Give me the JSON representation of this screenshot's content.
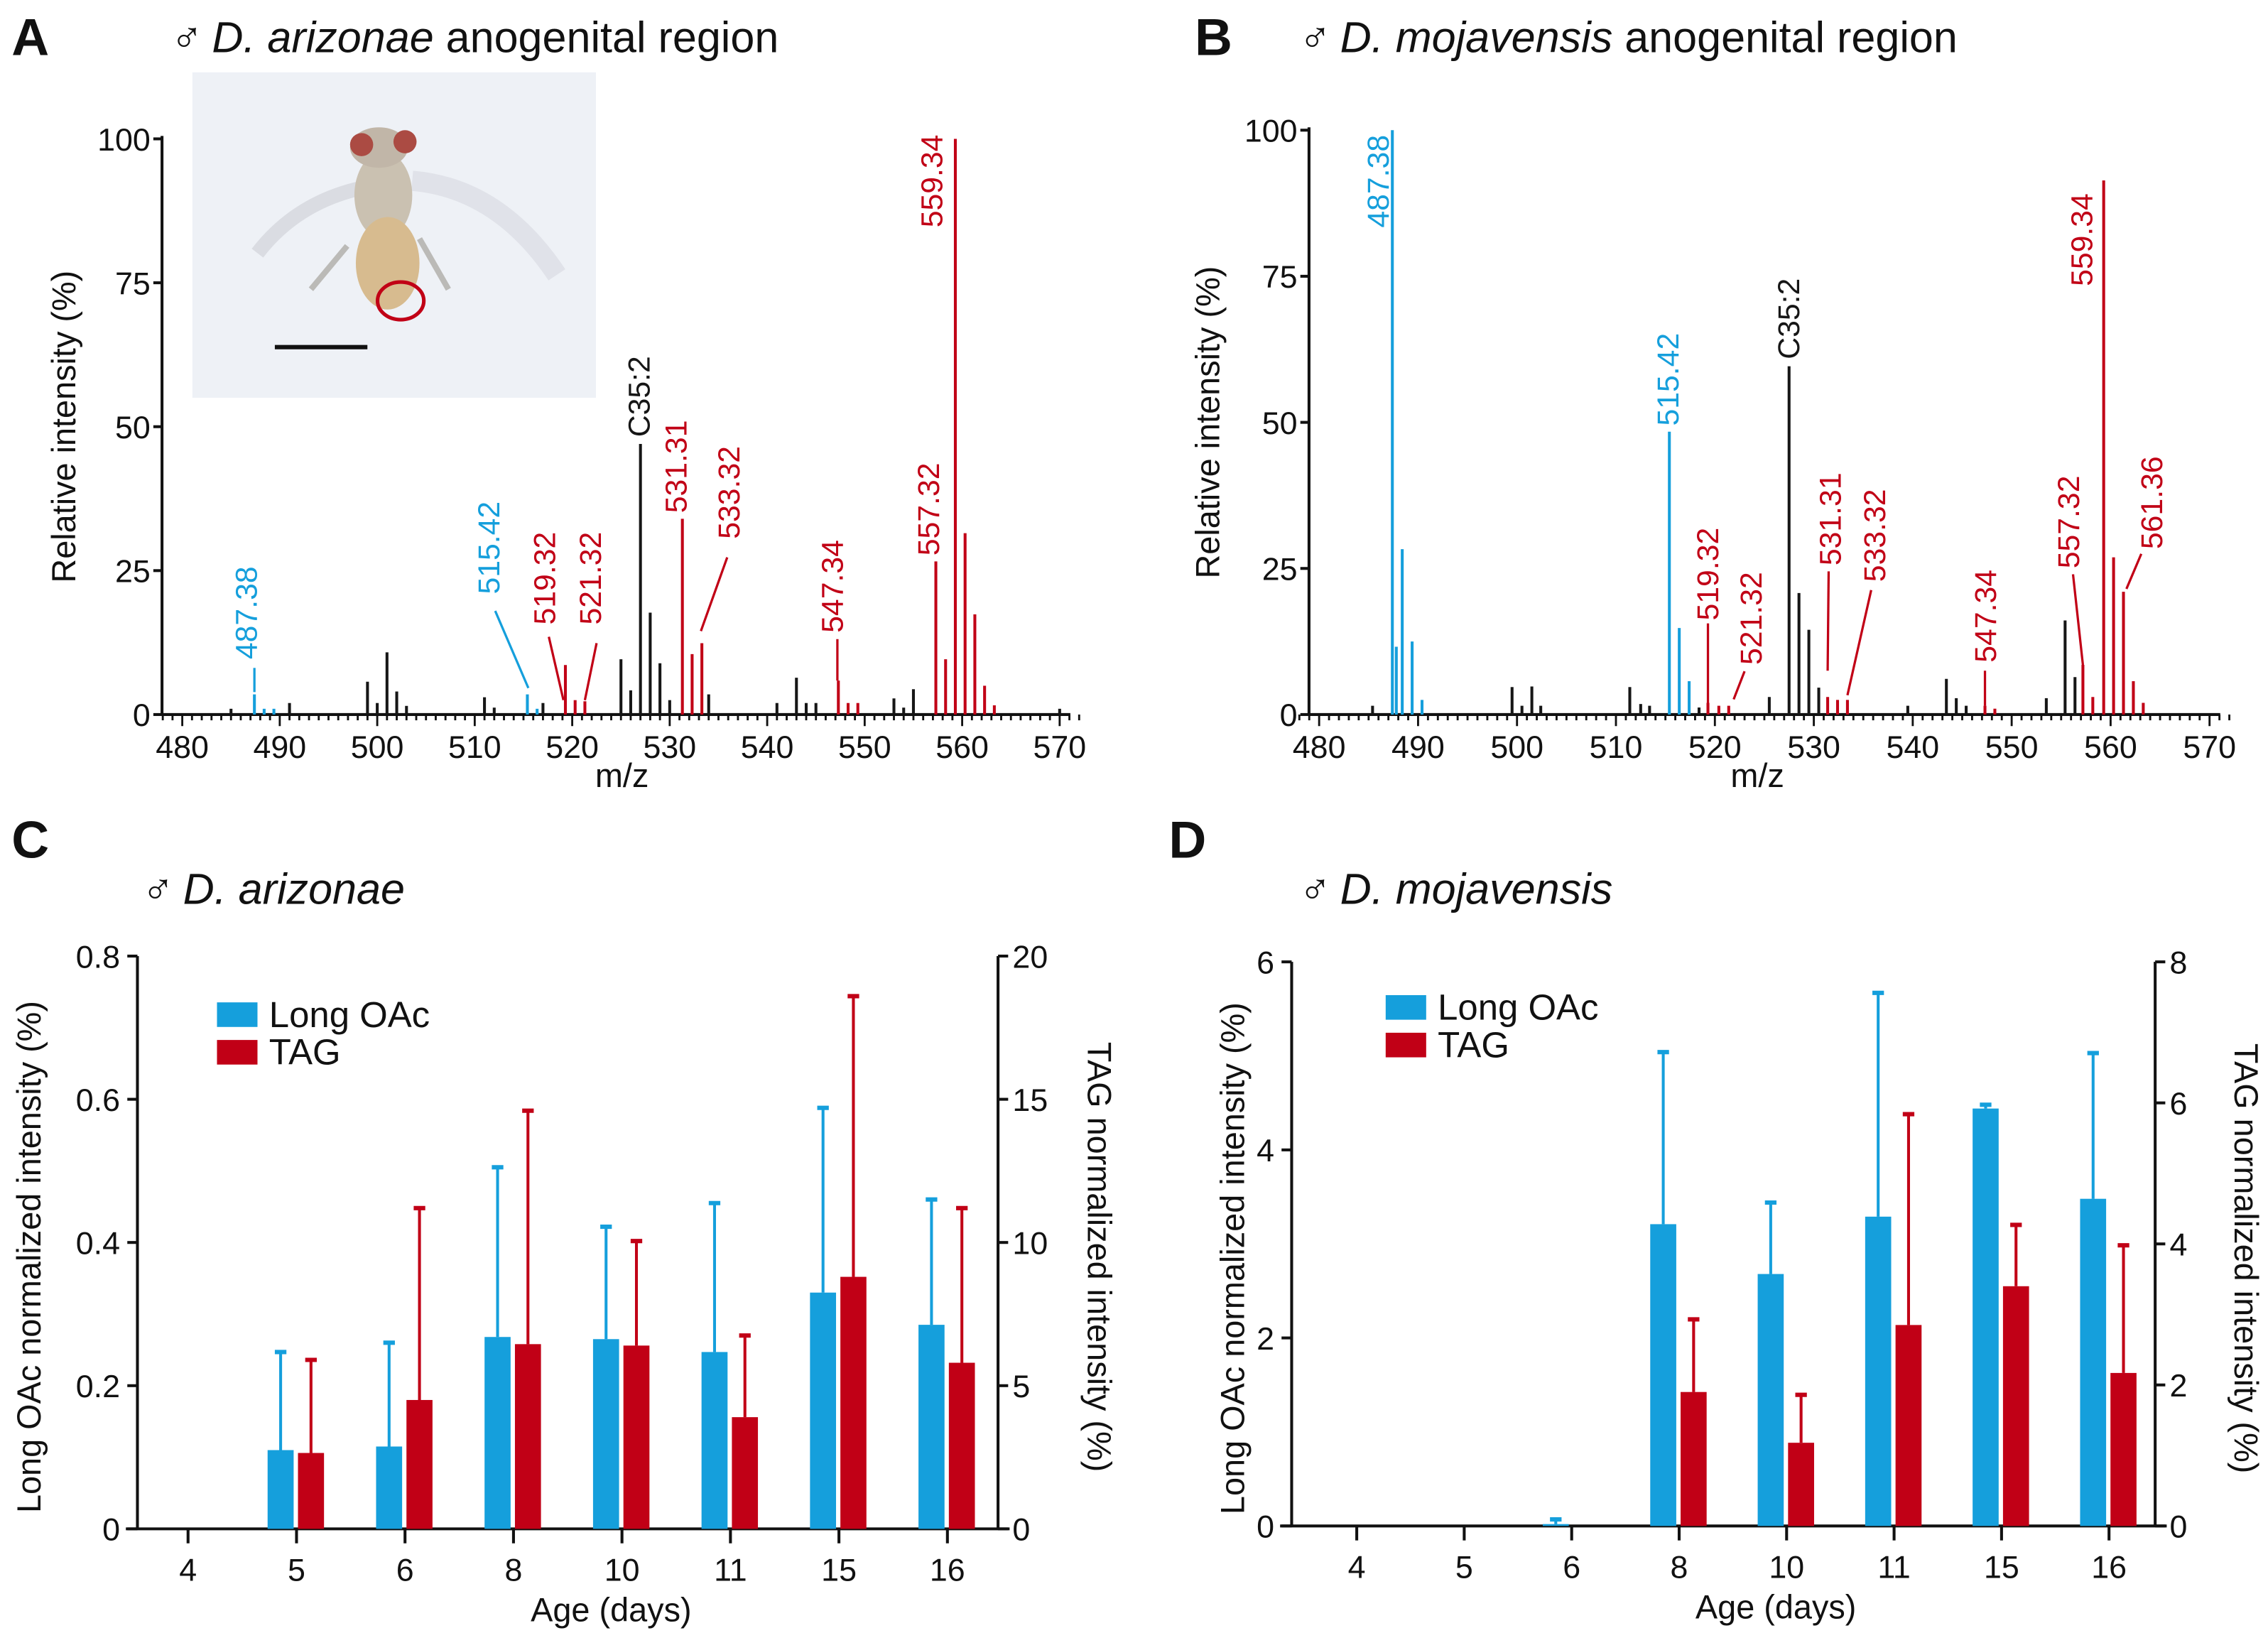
{
  "colors": {
    "blue": "#159fdc",
    "red": "#c10016",
    "black": "#161616"
  },
  "panels": {
    "A": {
      "letter": "A",
      "male_symbol": "♂",
      "species": "D. arizonae",
      "suffix": " anogenital region"
    },
    "B": {
      "letter": "B",
      "male_symbol": "♂",
      "species": "D. mojavensis",
      "suffix": " anogenital region"
    },
    "C": {
      "letter": "C",
      "male_symbol": "♂",
      "species": "D. arizonae"
    },
    "D": {
      "letter": "D",
      "male_symbol": "♂",
      "species": "D. mojavensis"
    }
  },
  "chart_data": [
    {
      "type": "bar",
      "panel": "A",
      "xlabel": "m/z",
      "ylabel": "Relative intensity (%)",
      "xlim": [
        480,
        570
      ],
      "ylim": [
        0,
        100
      ],
      "xticks": [
        "480",
        "490",
        "500",
        "510",
        "520",
        "530",
        "540",
        "550",
        "560",
        "570"
      ],
      "yticks": [
        "0",
        "25",
        "50",
        "75",
        "100"
      ],
      "inset": "photo of male fly, anogenital region circled in red, scale bar",
      "peaks": [
        [
          485,
          1,
          "black"
        ],
        [
          487.4,
          3.5,
          "blue"
        ],
        [
          488.4,
          1,
          "blue"
        ],
        [
          489.4,
          1,
          "blue"
        ],
        [
          491,
          2,
          "black"
        ],
        [
          499,
          5.7,
          "black"
        ],
        [
          500,
          2,
          "black"
        ],
        [
          501,
          10.8,
          "black"
        ],
        [
          502,
          4,
          "black"
        ],
        [
          503,
          1.5,
          "black"
        ],
        [
          511,
          3,
          "black"
        ],
        [
          512,
          1.2,
          "black"
        ],
        [
          515.4,
          3.5,
          "blue"
        ],
        [
          516.4,
          1,
          "blue"
        ],
        [
          517,
          2,
          "black"
        ],
        [
          519.3,
          8.6,
          "red"
        ],
        [
          520.3,
          2.5,
          "red"
        ],
        [
          521.3,
          2.3,
          "red"
        ],
        [
          525,
          9.6,
          "black"
        ],
        [
          526,
          4.2,
          "black"
        ],
        [
          527,
          47,
          "black"
        ],
        [
          528,
          17.7,
          "black"
        ],
        [
          529,
          8.9,
          "black"
        ],
        [
          530,
          2.5,
          "black"
        ],
        [
          531.3,
          34,
          "red"
        ],
        [
          532.3,
          10.5,
          "red"
        ],
        [
          533.3,
          12.4,
          "red"
        ],
        [
          534,
          3.5,
          "black"
        ],
        [
          541,
          2,
          "black"
        ],
        [
          543,
          6.4,
          "black"
        ],
        [
          544,
          2,
          "black"
        ],
        [
          545,
          2,
          "black"
        ],
        [
          547.3,
          5.9,
          "red"
        ],
        [
          548.3,
          2,
          "red"
        ],
        [
          549.3,
          2,
          "red"
        ],
        [
          553,
          2.8,
          "black"
        ],
        [
          554,
          1.2,
          "black"
        ],
        [
          555,
          4.4,
          "black"
        ],
        [
          557.3,
          26.6,
          "red"
        ],
        [
          558.3,
          9.6,
          "red"
        ],
        [
          559.3,
          100,
          "red"
        ],
        [
          560.3,
          31.5,
          "red"
        ],
        [
          561.3,
          17.4,
          "red"
        ],
        [
          562.3,
          5,
          "red"
        ],
        [
          563.3,
          1.6,
          "red"
        ],
        [
          570,
          1,
          "black"
        ]
      ],
      "annotations": [
        {
          "text": "487.38",
          "color": "blue"
        },
        {
          "text": "515.42",
          "color": "blue"
        },
        {
          "text": "519.32",
          "color": "red"
        },
        {
          "text": "521.32",
          "color": "red"
        },
        {
          "text": "C35:2",
          "color": "black"
        },
        {
          "text": "531.31",
          "color": "red"
        },
        {
          "text": "533.32",
          "color": "red"
        },
        {
          "text": "547.34",
          "color": "red"
        },
        {
          "text": "557.32",
          "color": "red"
        },
        {
          "text": "559.34",
          "color": "red"
        }
      ]
    },
    {
      "type": "bar",
      "panel": "B",
      "xlabel": "m/z",
      "ylabel": "Relative intensity (%)",
      "xlim": [
        480,
        570
      ],
      "ylim": [
        0,
        100
      ],
      "xticks": [
        "480",
        "490",
        "500",
        "510",
        "520",
        "530",
        "540",
        "550",
        "560",
        "570"
      ],
      "yticks": [
        "0",
        "25",
        "50",
        "75",
        "100"
      ],
      "peaks": [
        [
          485.4,
          1.5,
          "black"
        ],
        [
          487.4,
          100,
          "blue"
        ],
        [
          487.8,
          11.6,
          "blue"
        ],
        [
          488.4,
          28.3,
          "blue"
        ],
        [
          489.4,
          12.5,
          "blue"
        ],
        [
          490.4,
          2.5,
          "blue"
        ],
        [
          499.5,
          4.7,
          "black"
        ],
        [
          500.5,
          1.5,
          "black"
        ],
        [
          501.5,
          4.8,
          "black"
        ],
        [
          502.4,
          1.5,
          "black"
        ],
        [
          511.4,
          4.7,
          "black"
        ],
        [
          512.5,
          1.8,
          "black"
        ],
        [
          513.4,
          1.5,
          "black"
        ],
        [
          515.4,
          48.4,
          "blue"
        ],
        [
          516.4,
          14.8,
          "blue"
        ],
        [
          517.4,
          5.7,
          "blue"
        ],
        [
          518.4,
          1.2,
          "black"
        ],
        [
          519.3,
          2,
          "red"
        ],
        [
          520.4,
          1.5,
          "red"
        ],
        [
          521.4,
          1.5,
          "red"
        ],
        [
          525.5,
          3,
          "black"
        ],
        [
          527.5,
          59.6,
          "black"
        ],
        [
          528.5,
          20.8,
          "black"
        ],
        [
          529.5,
          14.5,
          "black"
        ],
        [
          530.5,
          4.6,
          "black"
        ],
        [
          531.4,
          3,
          "red"
        ],
        [
          532.4,
          2.5,
          "red"
        ],
        [
          533.4,
          2.5,
          "red"
        ],
        [
          539.5,
          1.5,
          "black"
        ],
        [
          543.4,
          6.1,
          "black"
        ],
        [
          544.4,
          2.8,
          "black"
        ],
        [
          545.4,
          1.5,
          "black"
        ],
        [
          547.3,
          1.5,
          "red"
        ],
        [
          548.3,
          1,
          "red"
        ],
        [
          553.5,
          2.8,
          "black"
        ],
        [
          555.4,
          16.1,
          "black"
        ],
        [
          556.4,
          6.4,
          "black"
        ],
        [
          557.2,
          8.5,
          "red"
        ],
        [
          558.2,
          3,
          "red"
        ],
        [
          559.3,
          91.4,
          "red"
        ],
        [
          560.3,
          26.9,
          "red"
        ],
        [
          561.3,
          21,
          "red"
        ],
        [
          562.3,
          5.7,
          "red"
        ],
        [
          563.3,
          2,
          "red"
        ]
      ],
      "annotations": [
        {
          "text": "487.38",
          "color": "blue"
        },
        {
          "text": "515.42",
          "color": "blue"
        },
        {
          "text": "519.32",
          "color": "red"
        },
        {
          "text": "521.32",
          "color": "red"
        },
        {
          "text": "C35:2",
          "color": "black"
        },
        {
          "text": "531.31",
          "color": "red"
        },
        {
          "text": "533.32",
          "color": "red"
        },
        {
          "text": "547.34",
          "color": "red"
        },
        {
          "text": "557.32",
          "color": "red"
        },
        {
          "text": "559.34",
          "color": "red"
        },
        {
          "text": "561.36",
          "color": "red"
        }
      ]
    },
    {
      "type": "bar",
      "panel": "C",
      "categories": [
        "4",
        "5",
        "6",
        "8",
        "10",
        "11",
        "15",
        "16"
      ],
      "xlabel": "Age (days)",
      "ylabel": "Long OAc normalized intensity (%)",
      "y2label": "TAG normalized intensity (%)",
      "ylim": [
        0,
        0.8
      ],
      "y2lim": [
        0,
        20
      ],
      "yticks": [
        "0",
        "0.2",
        "0.4",
        "0.6",
        "0.8"
      ],
      "y2ticks": [
        "0",
        "5",
        "10",
        "15",
        "20"
      ],
      "legend": "top-left",
      "series": [
        {
          "name": "Long OAc",
          "axis": "left",
          "color": "blue",
          "values": [
            0,
            0.11,
            0.115,
            0.268,
            0.265,
            0.247,
            0.33,
            0.285
          ],
          "error_bar_top": [
            null,
            0.247,
            0.26,
            0.505,
            0.422,
            0.455,
            0.588,
            0.46
          ]
        },
        {
          "name": "TAG",
          "axis": "right",
          "color": "red",
          "values": [
            0,
            2.65,
            4.5,
            6.45,
            6.4,
            3.9,
            8.8,
            5.8
          ],
          "error_bar_top": [
            null,
            5.9,
            11.2,
            14.6,
            10.05,
            6.75,
            18.6,
            11.2
          ]
        }
      ]
    },
    {
      "type": "bar",
      "panel": "D",
      "categories": [
        "4",
        "5",
        "6",
        "8",
        "10",
        "11",
        "15",
        "16"
      ],
      "xlabel": "Age (days)",
      "ylabel": "Long OAc normalized intensity (%)",
      "y2label": "TAG normalized intensity (%)",
      "ylim": [
        0,
        6
      ],
      "y2lim": [
        0,
        8
      ],
      "yticks": [
        "0",
        "2",
        "4",
        "6"
      ],
      "y2ticks": [
        "0",
        "2",
        "4",
        "6",
        "8"
      ],
      "legend": "top-left",
      "series": [
        {
          "name": "Long OAc",
          "axis": "left",
          "color": "blue",
          "values": [
            0,
            0,
            0.02,
            3.21,
            2.68,
            3.29,
            4.44,
            3.48
          ],
          "error_bar_top": [
            null,
            null,
            0.07,
            5.04,
            3.44,
            5.67,
            4.48,
            5.03
          ]
        },
        {
          "name": "TAG",
          "axis": "right",
          "color": "red",
          "values": [
            0,
            0,
            0,
            1.9,
            1.18,
            2.85,
            3.4,
            2.17
          ],
          "error_bar_top": [
            null,
            null,
            null,
            2.93,
            1.86,
            5.84,
            4.27,
            3.98
          ]
        }
      ]
    }
  ]
}
